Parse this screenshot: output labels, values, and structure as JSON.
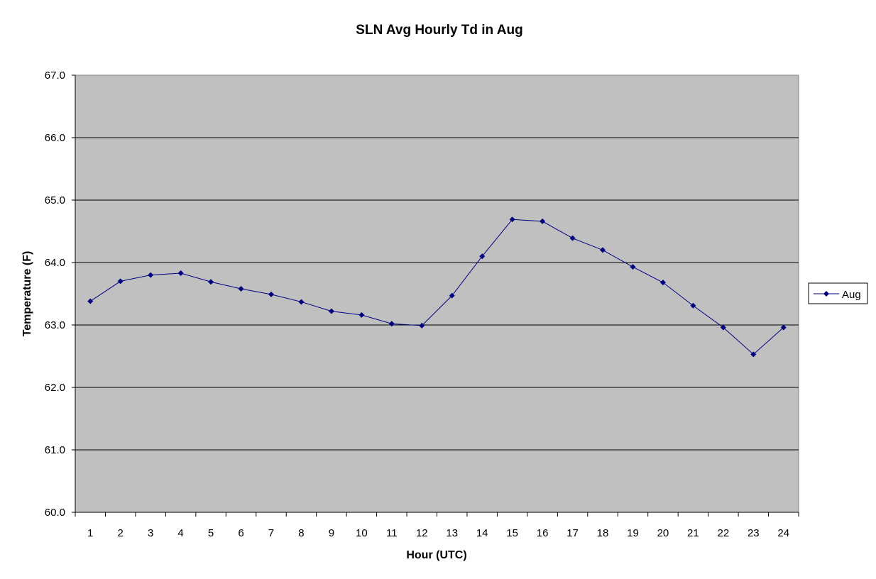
{
  "chart_data": {
    "type": "line",
    "title": "SLN Avg Hourly Td in Aug",
    "xlabel": "Hour (UTC)",
    "ylabel": "Temperature (F)",
    "ylim": [
      60.0,
      67.0
    ],
    "y_ticks": [
      "60.0",
      "61.0",
      "62.0",
      "63.0",
      "64.0",
      "65.0",
      "66.0",
      "67.0"
    ],
    "categories": [
      "1",
      "2",
      "3",
      "4",
      "5",
      "6",
      "7",
      "8",
      "9",
      "10",
      "11",
      "12",
      "13",
      "14",
      "15",
      "16",
      "17",
      "18",
      "19",
      "20",
      "21",
      "22",
      "23",
      "24"
    ],
    "series": [
      {
        "name": "Aug",
        "color": "#000080",
        "marker": "diamond",
        "values": [
          63.38,
          63.7,
          63.8,
          63.83,
          63.69,
          63.58,
          63.49,
          63.37,
          63.22,
          63.16,
          63.02,
          62.99,
          63.47,
          64.1,
          64.69,
          64.66,
          64.39,
          64.2,
          63.93,
          63.68,
          63.31,
          62.96,
          62.53,
          62.96
        ]
      }
    ],
    "grid": "horizontal",
    "plot_background": "#C0C0C0",
    "legend_position": "right"
  }
}
